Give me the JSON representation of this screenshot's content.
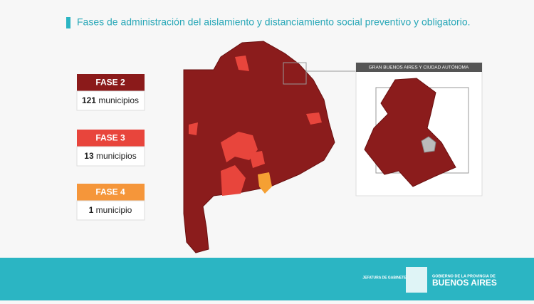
{
  "header": {
    "title": "Fases de administración del aislamiento y distanciamiento social preventivo y obligatorio."
  },
  "legend": [
    {
      "label": "FASE 2",
      "count": 121,
      "unit": "municipios"
    },
    {
      "label": "FASE 3",
      "count": 13,
      "unit": "municipios"
    },
    {
      "label": "FASE 4",
      "count": 1,
      "unit": "municipio"
    }
  ],
  "inset": {
    "title": "GRAN BUENOS AIRES Y CIUDAD AUTÓNOMA"
  },
  "footer": {
    "left": "JEFATURA DE GABINETE",
    "right_top": "GOBIERNO DE LA PROVINCIA DE",
    "right_bottom": "BUENOS AIRES"
  }
}
